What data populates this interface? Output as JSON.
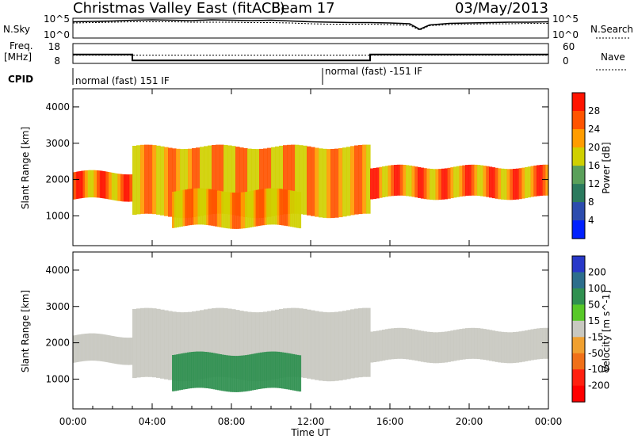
{
  "header": {
    "radar": "Christmas Valley East (fitACF)",
    "beam": "Beam 17",
    "date": "03/May/2013"
  },
  "chart_data": [
    {
      "type": "line",
      "panel": "noise",
      "left_label": "N.Sky",
      "right_label": "N.Search",
      "left_ticks": [
        "10^5",
        "10^0"
      ],
      "right_ticks": [
        "10^5",
        "10^0"
      ],
      "x": [
        0,
        1,
        2,
        3,
        4,
        5,
        6,
        7,
        8,
        9,
        10,
        11,
        12,
        13,
        14,
        15,
        16,
        17,
        17.5,
        18,
        19,
        20,
        21,
        22,
        23,
        24
      ],
      "series": [
        {
          "values": [
            4.1,
            4.2,
            4.3,
            4.5,
            4.6,
            4.5,
            4.4,
            4.6,
            4.5,
            4.4,
            4.5,
            4.3,
            4.1,
            4.0,
            3.9,
            3.9,
            3.8,
            3.6,
            2.2,
            3.3,
            3.7,
            3.8,
            3.9,
            4.0,
            4.0,
            4.1
          ]
        },
        {
          "values": [
            3.8,
            3.9,
            4.0,
            4.1,
            4.1,
            4.1,
            4.0,
            4.0,
            4.0,
            3.9,
            3.9,
            3.8,
            3.6,
            3.5,
            3.5,
            3.5,
            3.4,
            3.2,
            2.0,
            3.1,
            3.4,
            3.5,
            3.6,
            3.6,
            3.7,
            3.7
          ]
        }
      ]
    },
    {
      "type": "line",
      "panel": "frequency",
      "left_label_1": "Freq.",
      "left_label_2": "[MHz]",
      "left_ticks": [
        "18",
        "8"
      ],
      "right_label": "Nave",
      "right_ticks": [
        "60",
        "0"
      ],
      "x": [
        0,
        3,
        3,
        15,
        15,
        24
      ],
      "series": [
        {
          "name": "Freq.",
          "values": [
            12.5,
            12.5,
            9.5,
            9.5,
            12.5,
            12.5
          ]
        },
        {
          "name": "Nave",
          "values": [
            25,
            25,
            25,
            25,
            25,
            25
          ]
        }
      ]
    },
    {
      "type": "table",
      "panel": "cpid",
      "label": "CPID",
      "segments": [
        {
          "start": 0,
          "end": 12.6,
          "text": "normal (fast) 151 IF"
        },
        {
          "start": 12.6,
          "end": 24,
          "text": "normal (fast) -151 IF"
        }
      ]
    },
    {
      "type": "heatmap",
      "panel": "power",
      "ylabel": "Slant Range [km]",
      "ylim": [
        180,
        4500
      ],
      "yticks": [
        1000,
        2000,
        3000,
        4000
      ],
      "colorbar_label": "Power [dB]",
      "colorbar_ticks": [
        4,
        8,
        12,
        16,
        20,
        24,
        28
      ],
      "colorbar_colors": [
        "#0020ff",
        "#2c4cae",
        "#2b7a5e",
        "#5aa05a",
        "#d0d000",
        "#ff9c00",
        "#ff5400",
        "#ff1400"
      ],
      "bands": [
        {
          "t0": 0,
          "t1": 3,
          "r0": 1450,
          "r1": 2200,
          "power": 24
        },
        {
          "t0": 3,
          "t1": 15,
          "r0": 1000,
          "r1": 2900,
          "power": 22
        },
        {
          "t0": 5,
          "t1": 11.5,
          "r0": 700,
          "r1": 1700,
          "power": 22
        },
        {
          "t0": 15,
          "t1": 24,
          "r0": 1500,
          "r1": 2350,
          "power": 24
        }
      ]
    },
    {
      "type": "heatmap",
      "panel": "velocity",
      "ylabel": "Slant Range [km]",
      "ylim": [
        180,
        4500
      ],
      "yticks": [
        1000,
        2000,
        3000,
        4000
      ],
      "xlabel": "Time UT",
      "xticks": [
        "00:00",
        "04:00",
        "08:00",
        "12:00",
        "16:00",
        "20:00",
        "00:00"
      ],
      "colorbar_label": "Velocity [m s^-1]",
      "colorbar_ticks": [
        200,
        100,
        50,
        15,
        -15,
        -50,
        -100,
        -200
      ],
      "colorbar_colors": [
        "#2838c8",
        "#2c6e8c",
        "#309050",
        "#58c828",
        "#c8c8c0",
        "#f0a030",
        "#f07018",
        "#ff2010",
        "#ff0000"
      ],
      "bands": [
        {
          "t0": 0,
          "t1": 3,
          "r0": 1450,
          "r1": 2200,
          "velocity": 0
        },
        {
          "t0": 3,
          "t1": 15,
          "r0": 1000,
          "r1": 2900,
          "velocity": 0
        },
        {
          "t0": 5,
          "t1": 11.5,
          "r0": 700,
          "r1": 1700,
          "velocity": 80
        },
        {
          "t0": 15,
          "t1": 24,
          "r0": 1500,
          "r1": 2350,
          "velocity": 0
        }
      ]
    }
  ]
}
